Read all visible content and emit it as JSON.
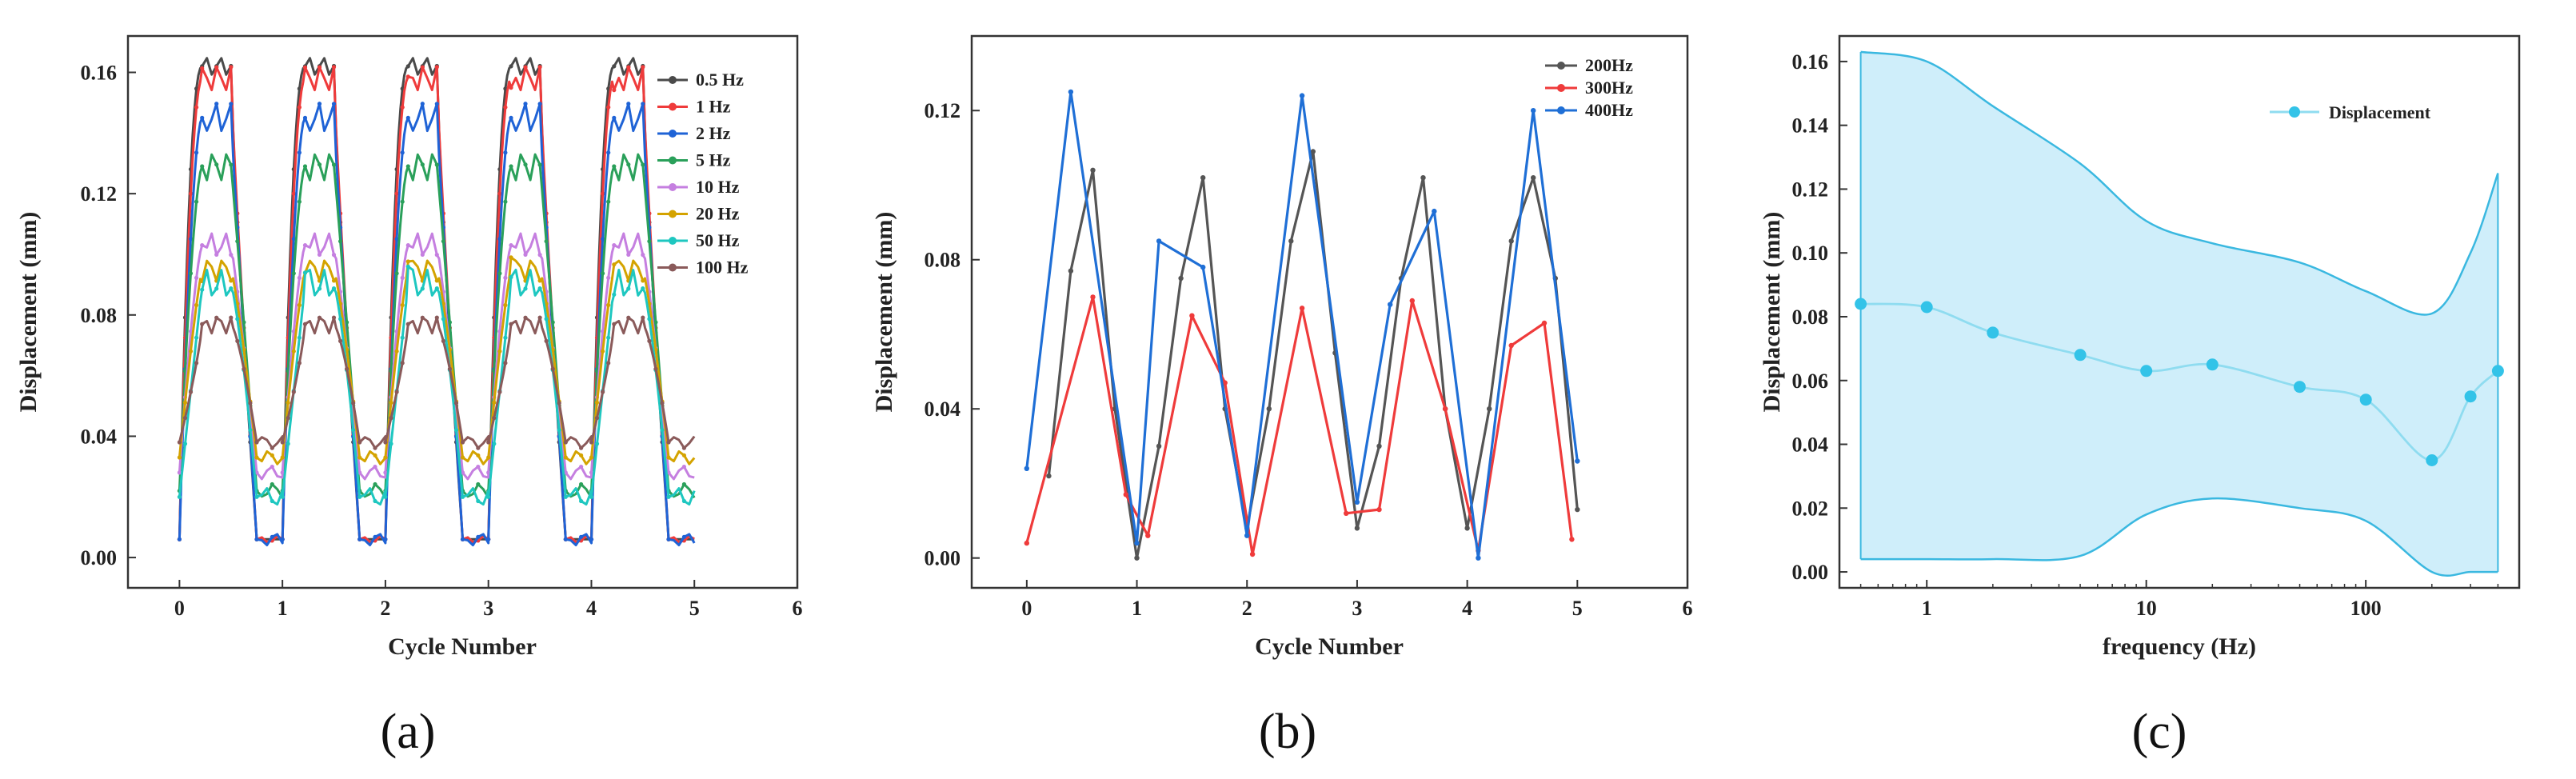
{
  "chart_data": [
    {
      "type": "line",
      "panel_label": "(a)",
      "xlabel": "Cycle Number",
      "ylabel": "Displacement (mm)",
      "xlim": [
        -0.5,
        6
      ],
      "ylim": [
        -0.01,
        0.172
      ],
      "xticks": [
        0,
        1,
        2,
        3,
        4,
        5,
        6
      ],
      "yticks": [
        0.0,
        0.04,
        0.08,
        0.12,
        0.16
      ],
      "ytick_labels": [
        "0.00",
        "0.04",
        "0.08",
        "0.12",
        "0.16"
      ],
      "legend_position": "top-right",
      "cycles": 5,
      "series": [
        {
          "name": "0.5 Hz",
          "color": "#4a4a4a",
          "high": 0.162,
          "low": 0.006,
          "overshoot": 0.0
        },
        {
          "name": "1 Hz",
          "color": "#ef3b3b",
          "high": 0.158,
          "low": 0.006,
          "overshoot": 0.004
        },
        {
          "name": "2 Hz",
          "color": "#1f63d6",
          "high": 0.145,
          "low": 0.006,
          "overshoot": 0.0
        },
        {
          "name": "5 Hz",
          "color": "#2aa05a",
          "high": 0.129,
          "low": 0.022,
          "overshoot": 0.0
        },
        {
          "name": "10 Hz",
          "color": "#c57fe0",
          "high": 0.103,
          "low": 0.028,
          "overshoot": 0.0
        },
        {
          "name": "20 Hz",
          "color": "#d4a300",
          "high": 0.095,
          "low": 0.033,
          "overshoot": 0.004
        },
        {
          "name": "50 Hz",
          "color": "#1ec7c0",
          "high": 0.09,
          "low": 0.02,
          "overshoot": 0.006
        },
        {
          "name": "100 Hz",
          "color": "#8a5a5a",
          "high": 0.077,
          "low": 0.038,
          "overshoot": 0.0
        }
      ]
    },
    {
      "type": "line",
      "panel_label": "(b)",
      "xlabel": "Cycle Number",
      "ylabel": "Displacement (mm)",
      "xlim": [
        -0.5,
        6
      ],
      "ylim": [
        -0.008,
        0.14
      ],
      "xticks": [
        0,
        1,
        2,
        3,
        4,
        5,
        6
      ],
      "yticks": [
        0.0,
        0.04,
        0.08,
        0.12
      ],
      "ytick_labels": [
        "0.00",
        "0.04",
        "0.08",
        "0.12"
      ],
      "legend_position": "top-right",
      "series": [
        {
          "name": "200Hz",
          "color": "#555555",
          "x": [
            0.2,
            0.4,
            0.6,
            0.8,
            1.0,
            1.2,
            1.4,
            1.6,
            1.8,
            2.0,
            2.2,
            2.4,
            2.6,
            2.8,
            3.0,
            3.2,
            3.4,
            3.6,
            3.8,
            4.0,
            4.2,
            4.4,
            4.6,
            4.8,
            5.0
          ],
          "values": [
            0.022,
            0.077,
            0.104,
            0.04,
            0.0,
            0.03,
            0.075,
            0.102,
            0.04,
            0.008,
            0.04,
            0.085,
            0.109,
            0.055,
            0.008,
            0.03,
            0.075,
            0.102,
            0.04,
            0.008,
            0.04,
            0.085,
            0.102,
            0.075,
            0.013
          ]
        },
        {
          "name": "300Hz",
          "color": "#ef3b3b",
          "x": [
            0.0,
            0.6,
            0.9,
            1.1,
            1.5,
            1.8,
            2.05,
            2.5,
            2.9,
            3.2,
            3.5,
            3.8,
            4.1,
            4.4,
            4.7,
            4.95
          ],
          "values": [
            0.004,
            0.07,
            0.017,
            0.006,
            0.065,
            0.047,
            0.001,
            0.067,
            0.012,
            0.013,
            0.069,
            0.04,
            0.002,
            0.057,
            0.063,
            0.005
          ]
        },
        {
          "name": "400Hz",
          "color": "#1f6fd6",
          "x": [
            0.0,
            0.4,
            1.0,
            1.2,
            1.6,
            2.0,
            2.5,
            3.0,
            3.3,
            3.7,
            4.1,
            4.6,
            5.0
          ],
          "values": [
            0.024,
            0.125,
            0.004,
            0.085,
            0.078,
            0.006,
            0.124,
            0.015,
            0.068,
            0.093,
            0.0,
            0.12,
            0.026
          ]
        }
      ]
    },
    {
      "type": "line",
      "panel_label": "(c)",
      "xlabel": "frequency (Hz)",
      "ylabel": "Displacement (mm)",
      "xscale": "log",
      "xlim": [
        0.4,
        500
      ],
      "ylim": [
        -0.005,
        0.168
      ],
      "xticks": [
        1,
        10,
        100
      ],
      "xtick_labels": [
        "1",
        "10",
        "100"
      ],
      "yticks": [
        0.0,
        0.02,
        0.04,
        0.06,
        0.08,
        0.1,
        0.12,
        0.14,
        0.16
      ],
      "ytick_labels": [
        "0.00",
        "0.02",
        "0.04",
        "0.06",
        "0.08",
        "0.10",
        "0.12",
        "0.14",
        "0.16"
      ],
      "legend_position": "top-right",
      "series": [
        {
          "name": "Displacement",
          "color": "#33c3e8",
          "x": [
            0.5,
            1,
            2,
            5,
            10,
            20,
            50,
            100,
            200,
            300,
            400
          ],
          "values": [
            0.084,
            0.083,
            0.075,
            0.068,
            0.063,
            0.065,
            0.058,
            0.054,
            0.035,
            0.055,
            0.063
          ]
        }
      ],
      "band": {
        "color": "#cfeefa",
        "edge_color": "#3ab8e0",
        "x": [
          0.5,
          1,
          2,
          5,
          10,
          20,
          50,
          100,
          200,
          300,
          400
        ],
        "upper": [
          0.163,
          0.16,
          0.146,
          0.128,
          0.11,
          0.103,
          0.097,
          0.088,
          0.081,
          0.1,
          0.125
        ],
        "lower": [
          0.004,
          0.004,
          0.004,
          0.005,
          0.018,
          0.023,
          0.02,
          0.016,
          0.0,
          0.0,
          0.0
        ]
      }
    }
  ]
}
